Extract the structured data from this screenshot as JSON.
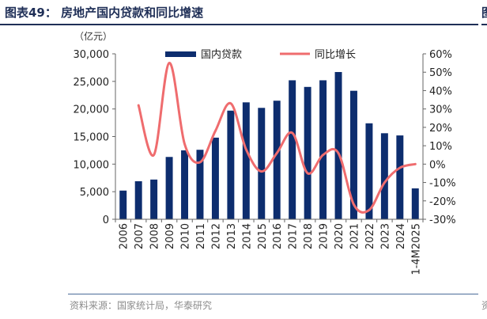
{
  "title": "图表49：  房地产国内贷款和同比增速",
  "source": "资料来源：国家统计局，华泰研究",
  "neighbor_fragment": {
    "title": "图",
    "source": "资"
  },
  "colors": {
    "bar": "#0d2d6e",
    "line": "#ef6c6e",
    "title": "#1f2f57",
    "text": "#333333"
  },
  "chart_data": {
    "type": "bar",
    "unit_label": "（亿元）",
    "categories": [
      "2006",
      "2007",
      "2008",
      "2009",
      "2010",
      "2011",
      "2012",
      "2013",
      "2014",
      "2015",
      "2016",
      "2017",
      "2018",
      "2019",
      "2020",
      "2021",
      "2022",
      "2023",
      "2024",
      "1-4M2025"
    ],
    "series": [
      {
        "name": "国内贷款",
        "type": "bar",
        "axis": "left",
        "values": [
          5200,
          6900,
          7200,
          11300,
          12500,
          12600,
          14800,
          19700,
          21200,
          20200,
          21500,
          25200,
          24000,
          25200,
          26700,
          23300,
          17400,
          15600,
          15200,
          5600
        ]
      },
      {
        "name": "同比增长",
        "type": "line",
        "axis": "right",
        "unit": "%",
        "values": [
          null,
          32,
          5,
          55,
          11,
          1,
          18,
          33,
          8,
          -4,
          6,
          17,
          -5,
          5,
          6,
          -22,
          -25,
          -10,
          -2,
          0
        ]
      }
    ],
    "y_left": {
      "min": 0,
      "max": 30000,
      "ticks": [
        0,
        5000,
        10000,
        15000,
        20000,
        25000,
        30000
      ],
      "tick_labels": [
        "0",
        "5,000",
        "10,000",
        "15,000",
        "20,000",
        "25,000",
        "30,000"
      ]
    },
    "y_right": {
      "min": -30,
      "max": 60,
      "ticks": [
        -30,
        -20,
        -10,
        0,
        10,
        20,
        30,
        40,
        50,
        60
      ],
      "tick_labels": [
        "-30%",
        "-20%",
        "-10%",
        "0%",
        "10%",
        "20%",
        "30%",
        "40%",
        "50%",
        "60%"
      ]
    },
    "grid": false,
    "legend_position": "top"
  }
}
